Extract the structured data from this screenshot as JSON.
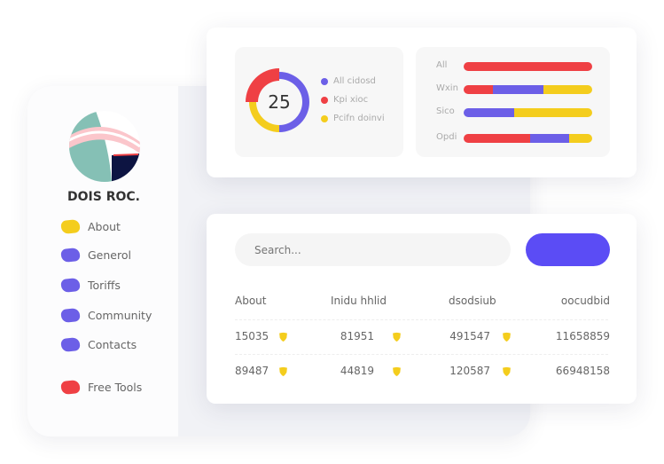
{
  "sidebar": {
    "name": "DOIS ROC.",
    "items": [
      {
        "label": "About",
        "color": "#f4cd1d"
      },
      {
        "label": "Generol",
        "color": "#6c5fe7"
      },
      {
        "label": "Toriffs",
        "color": "#6c5fe7"
      },
      {
        "label": "Community",
        "color": "#6c5fe7"
      },
      {
        "label": "Contacts",
        "color": "#6c5fe7"
      },
      {
        "label": "Free Tools",
        "color": "#ef4044"
      }
    ]
  },
  "donut": {
    "center_value": "25",
    "segments": [
      {
        "label": "All cidosd",
        "color": "#6c5fe7",
        "fraction": 0.5
      },
      {
        "label": "Pcifn doinvi",
        "color": "#f4cd1d",
        "fraction": 0.25
      },
      {
        "label": "Kpi xioc",
        "color": "#ef4044",
        "fraction": 0.25
      }
    ],
    "legend": [
      {
        "label": "All cidosd",
        "color": "#6c5fe7"
      },
      {
        "label": "Kpi xioc",
        "color": "#ef4044"
      },
      {
        "label": "Pcifn doinvi",
        "color": "#f4cd1d"
      }
    ]
  },
  "bars": [
    {
      "label": "All",
      "segments": [
        {
          "color": "#ef4044",
          "fraction": 1
        }
      ]
    },
    {
      "label": "Wxin",
      "segments": [
        {
          "color": "#ef4044",
          "fraction": 0.23
        },
        {
          "color": "#6c5fe7",
          "fraction": 0.39
        },
        {
          "color": "#f4cd1d",
          "fraction": 0.38
        }
      ]
    },
    {
      "label": "Sico",
      "segments": [
        {
          "color": "#6c5fe7",
          "fraction": 0.39
        },
        {
          "color": "#f4cd1d",
          "fraction": 0.61
        }
      ]
    },
    {
      "label": "Opdi",
      "segments": [
        {
          "color": "#ef4044",
          "fraction": 0.52
        },
        {
          "color": "#6c5fe7",
          "fraction": 0.3
        },
        {
          "color": "#f4cd1d",
          "fraction": 0.18
        }
      ]
    }
  ],
  "search": {
    "placeholder": "Search..."
  },
  "table": {
    "headers": [
      "About",
      "Inidu hhlid",
      "dsodsiub",
      "oocudbid"
    ],
    "rows": [
      [
        "15035",
        "81951",
        "491547",
        "11658859"
      ],
      [
        "89487",
        "44819",
        "120587",
        "66948158"
      ]
    ]
  },
  "colors": {
    "accent": "#5b4cf5",
    "yellow": "#f4cd1d",
    "red": "#ef4044",
    "purple": "#6c5fe7"
  }
}
